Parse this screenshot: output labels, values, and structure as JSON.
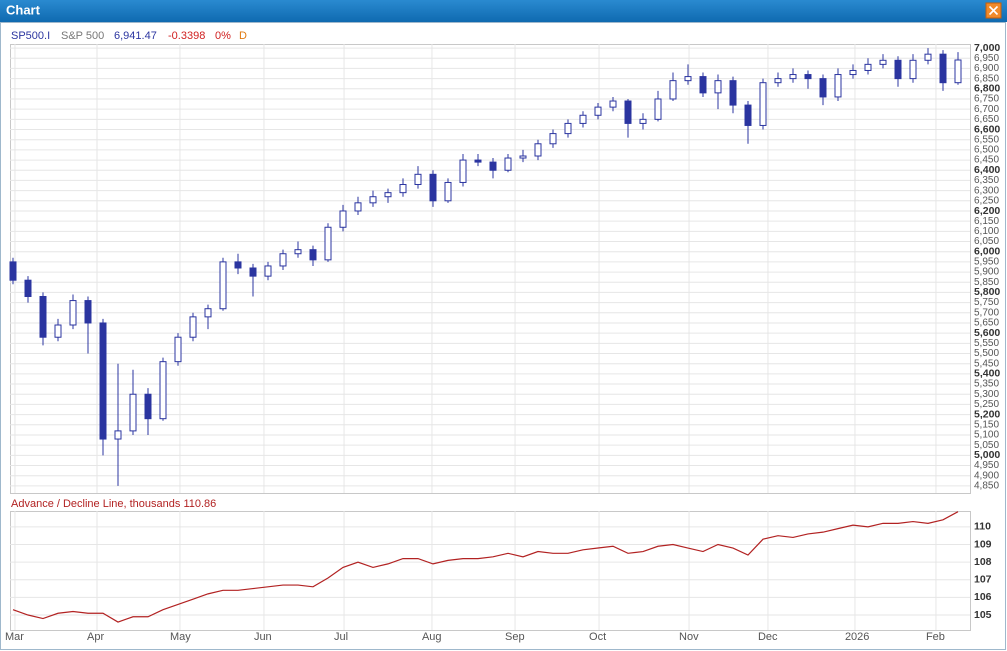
{
  "window": {
    "title": "Chart"
  },
  "chart_data": [
    {
      "type": "candlestick",
      "symbol": "SP500.I",
      "name": "S&P 500",
      "last": "6,941.47",
      "change": "-0.3398",
      "change_pct": "0%",
      "interval": "D",
      "up_color": "#ffffff",
      "down_color": "#2b35a0",
      "grid": true,
      "ylim": [
        4815,
        7020
      ],
      "yticks": [
        {
          "value": 4850,
          "label": "4,850"
        },
        {
          "value": 4900,
          "label": "4,900"
        },
        {
          "value": 4950,
          "label": "4,950"
        },
        {
          "value": 5000,
          "label": "5,000"
        },
        {
          "value": 5050,
          "label": "5,050"
        },
        {
          "value": 5100,
          "label": "5,100"
        },
        {
          "value": 5150,
          "label": "5,150"
        },
        {
          "value": 5200,
          "label": "5,200"
        },
        {
          "value": 5250,
          "label": "5,250"
        },
        {
          "value": 5300,
          "label": "5,300"
        },
        {
          "value": 5350,
          "label": "5,350"
        },
        {
          "value": 5400,
          "label": "5,400"
        },
        {
          "value": 5450,
          "label": "5,450"
        },
        {
          "value": 5500,
          "label": "5,500"
        },
        {
          "value": 5550,
          "label": "5,550"
        },
        {
          "value": 5600,
          "label": "5,600"
        },
        {
          "value": 5650,
          "label": "5,650"
        },
        {
          "value": 5700,
          "label": "5,700"
        },
        {
          "value": 5750,
          "label": "5,750"
        },
        {
          "value": 5800,
          "label": "5,800"
        },
        {
          "value": 5850,
          "label": "5,850"
        },
        {
          "value": 5900,
          "label": "5,900"
        },
        {
          "value": 5950,
          "label": "5,950"
        },
        {
          "value": 6000,
          "label": "6,000"
        },
        {
          "value": 6050,
          "label": "6,050"
        },
        {
          "value": 6100,
          "label": "6,100"
        },
        {
          "value": 6150,
          "label": "6,150"
        },
        {
          "value": 6200,
          "label": "6,200"
        },
        {
          "value": 6250,
          "label": "6,250"
        },
        {
          "value": 6300,
          "label": "6,300"
        },
        {
          "value": 6350,
          "label": "6,350"
        },
        {
          "value": 6400,
          "label": "6,400"
        },
        {
          "value": 6450,
          "label": "6,450"
        },
        {
          "value": 6500,
          "label": "6,500"
        },
        {
          "value": 6550,
          "label": "6,550"
        },
        {
          "value": 6600,
          "label": "6,600"
        },
        {
          "value": 6650,
          "label": "6,650"
        },
        {
          "value": 6700,
          "label": "6,700"
        },
        {
          "value": 6750,
          "label": "6,750"
        },
        {
          "value": 6800,
          "label": "6,800"
        },
        {
          "value": 6850,
          "label": "6,850"
        },
        {
          "value": 6900,
          "label": "6,900"
        },
        {
          "value": 6950,
          "label": "6,950"
        },
        {
          "value": 7000,
          "label": "7,000"
        }
      ],
      "open": [
        5950,
        5860,
        5780,
        5580,
        5640,
        5760,
        5650,
        5080,
        5120,
        5300,
        5180,
        5460,
        5580,
        5680,
        5720,
        5950,
        5920,
        5880,
        5930,
        5990,
        6010,
        5960,
        6120,
        6200,
        6240,
        6270,
        6290,
        6330,
        6380,
        6250,
        6340,
        6450,
        6440,
        6400,
        6460,
        6470,
        6530,
        6580,
        6630,
        6670,
        6710,
        6740,
        6630,
        6650,
        6750,
        6840,
        6860,
        6780,
        6840,
        6720,
        6620,
        6830,
        6850,
        6870,
        6850,
        6760,
        6870,
        6890,
        6920,
        6940,
        6850,
        6940,
        6970,
        6830
      ],
      "high": [
        5970,
        5880,
        5800,
        5670,
        5790,
        5780,
        5670,
        5450,
        5420,
        5330,
        5480,
        5600,
        5700,
        5740,
        5970,
        5990,
        5940,
        5950,
        6010,
        6050,
        6030,
        6140,
        6230,
        6270,
        6300,
        6310,
        6360,
        6420,
        6400,
        6360,
        6480,
        6480,
        6460,
        6480,
        6500,
        6550,
        6600,
        6650,
        6690,
        6730,
        6760,
        6750,
        6680,
        6790,
        6880,
        6920,
        6880,
        6870,
        6860,
        6740,
        6850,
        6880,
        6900,
        6890,
        6870,
        6900,
        6920,
        6950,
        6970,
        6960,
        6970,
        7000,
        6990,
        6980
      ],
      "low": [
        5840,
        5750,
        5540,
        5560,
        5620,
        5500,
        5000,
        4850,
        5100,
        5100,
        5170,
        5440,
        5560,
        5620,
        5710,
        5890,
        5780,
        5860,
        5910,
        5970,
        5930,
        5950,
        6100,
        6180,
        6220,
        6240,
        6270,
        6310,
        6220,
        6240,
        6320,
        6420,
        6360,
        6390,
        6440,
        6450,
        6510,
        6560,
        6610,
        6650,
        6690,
        6560,
        6600,
        6640,
        6740,
        6820,
        6760,
        6700,
        6680,
        6530,
        6600,
        6810,
        6830,
        6800,
        6720,
        6740,
        6850,
        6870,
        6900,
        6810,
        6830,
        6920,
        6790,
        6820
      ],
      "close": [
        5860,
        5780,
        5580,
        5640,
        5760,
        5650,
        5080,
        5120,
        5300,
        5180,
        5460,
        5580,
        5680,
        5720,
        5950,
        5920,
        5880,
        5930,
        5990,
        6010,
        5960,
        6120,
        6200,
        6240,
        6270,
        6290,
        6330,
        6380,
        6250,
        6340,
        6450,
        6440,
        6400,
        6460,
        6470,
        6530,
        6580,
        6630,
        6670,
        6710,
        6740,
        6630,
        6650,
        6750,
        6840,
        6860,
        6780,
        6840,
        6720,
        6620,
        6830,
        6850,
        6870,
        6850,
        6760,
        6870,
        6890,
        6920,
        6940,
        6850,
        6940,
        6970,
        6830,
        6941.47
      ]
    },
    {
      "type": "line",
      "title": "Advance / Decline Line, thousands 110.86",
      "color": "#b22222",
      "grid": true,
      "categories": [
        null,
        null,
        null,
        null,
        null,
        null,
        null,
        null,
        null,
        null,
        null,
        null,
        null,
        null,
        null,
        null,
        null,
        null,
        null,
        null,
        null,
        null,
        null,
        null,
        null,
        null,
        null,
        null,
        null,
        null,
        null,
        null,
        null,
        null,
        null,
        null,
        null,
        null,
        null,
        null,
        null,
        null,
        null,
        null,
        null,
        null,
        null,
        null,
        null,
        null,
        null,
        null,
        null,
        null,
        null,
        null,
        null,
        null,
        null,
        null,
        null,
        null,
        null,
        null
      ],
      "xlim": [
        -0.2,
        63.8
      ],
      "xticks": [
        {
          "value": 0.13,
          "label": "Mar"
        },
        {
          "value": 5.6,
          "label": "Apr"
        },
        {
          "value": 11.13,
          "label": "May"
        },
        {
          "value": 16.73,
          "label": "Jun"
        },
        {
          "value": 22.07,
          "label": "Jul"
        },
        {
          "value": 27.93,
          "label": "Aug"
        },
        {
          "value": 33.47,
          "label": "Sep"
        },
        {
          "value": 39.07,
          "label": "Oct"
        },
        {
          "value": 45.07,
          "label": "Nov"
        },
        {
          "value": 50.33,
          "label": "Dec"
        },
        {
          "value": 56.13,
          "label": "2026"
        },
        {
          "value": 61.53,
          "label": "Feb"
        }
      ],
      "ylim": [
        104.15,
        110.9
      ],
      "yticks": [
        105,
        106,
        107,
        108,
        109,
        110
      ],
      "values": [
        105.3,
        105.0,
        104.8,
        105.1,
        105.2,
        105.1,
        105.1,
        104.6,
        104.9,
        104.9,
        105.3,
        105.6,
        105.9,
        106.2,
        106.4,
        106.4,
        106.5,
        106.6,
        106.7,
        106.7,
        106.6,
        107.1,
        107.7,
        108.0,
        107.7,
        107.9,
        108.2,
        108.2,
        107.9,
        108.1,
        108.2,
        108.2,
        108.3,
        108.5,
        108.3,
        108.6,
        108.5,
        108.5,
        108.7,
        108.8,
        108.9,
        108.5,
        108.6,
        108.9,
        109.0,
        108.8,
        108.6,
        109.0,
        108.8,
        108.4,
        109.3,
        109.5,
        109.4,
        109.6,
        109.7,
        109.9,
        110.1,
        110.0,
        110.2,
        110.2,
        110.3,
        110.2,
        110.4,
        110.86
      ]
    }
  ]
}
